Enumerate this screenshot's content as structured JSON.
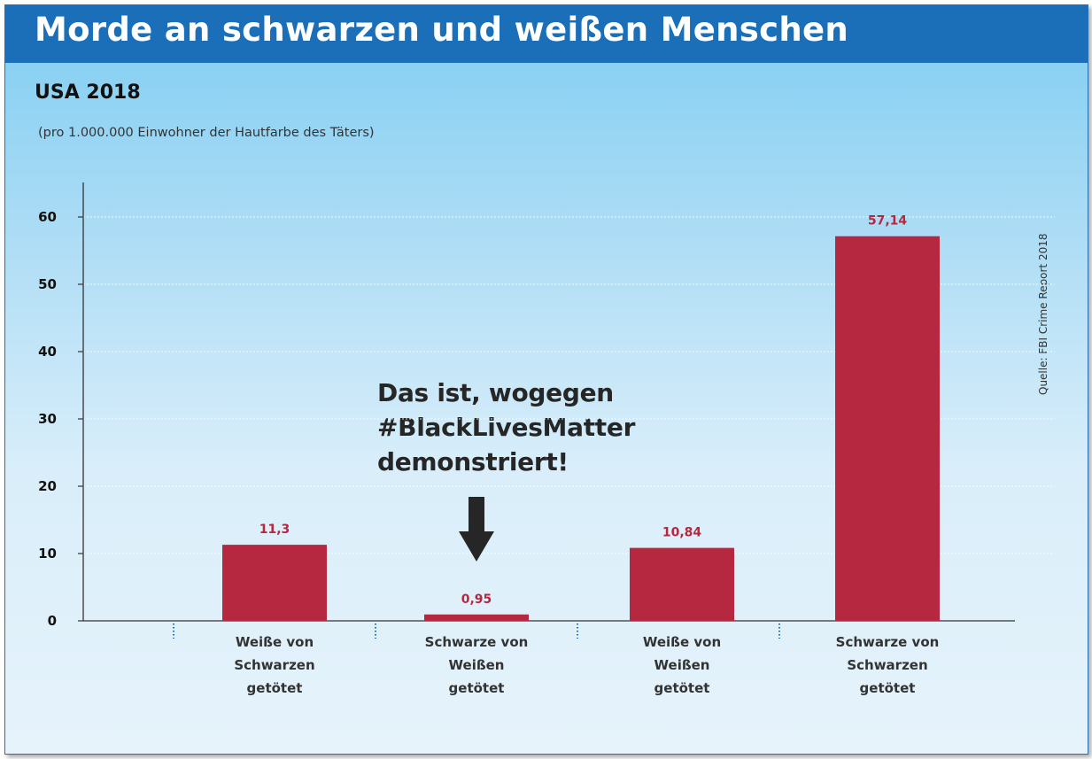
{
  "title": "Morde an schwarzen und weißen Menschen",
  "subtitle": "USA 2018",
  "note": "(pro 1.000.000 Einwohner der Hautfarbe des Täters)",
  "source": "Quelle: FBI Crime Report 2018",
  "annotation": {
    "lines": [
      "Das ist, wogegen",
      "#BlackLivesMatter",
      "demonstriert!"
    ],
    "arrow_icon": "arrow-down-icon"
  },
  "colors": {
    "header": "#1a6fb8",
    "bar": "#b5283f",
    "value_label": "#b5283f",
    "axis": "#333333"
  },
  "chart_data": {
    "type": "bar",
    "categories": [
      [
        "Weiße von",
        "Schwarzen",
        "getötet"
      ],
      [
        "Schwarze von",
        "Weißen",
        "getötet"
      ],
      [
        "Weiße von",
        "Weißen",
        "getötet"
      ],
      [
        "Schwarze von",
        "Schwarzen",
        "getötet"
      ]
    ],
    "values": [
      11.3,
      0.95,
      10.84,
      57.14
    ],
    "value_labels": [
      "11,3",
      "0,95",
      "10,84",
      "57,14"
    ],
    "yticks": [
      0,
      10,
      20,
      30,
      40,
      50,
      60
    ],
    "ylim": [
      0,
      65
    ],
    "grid": true,
    "legend": "none"
  }
}
